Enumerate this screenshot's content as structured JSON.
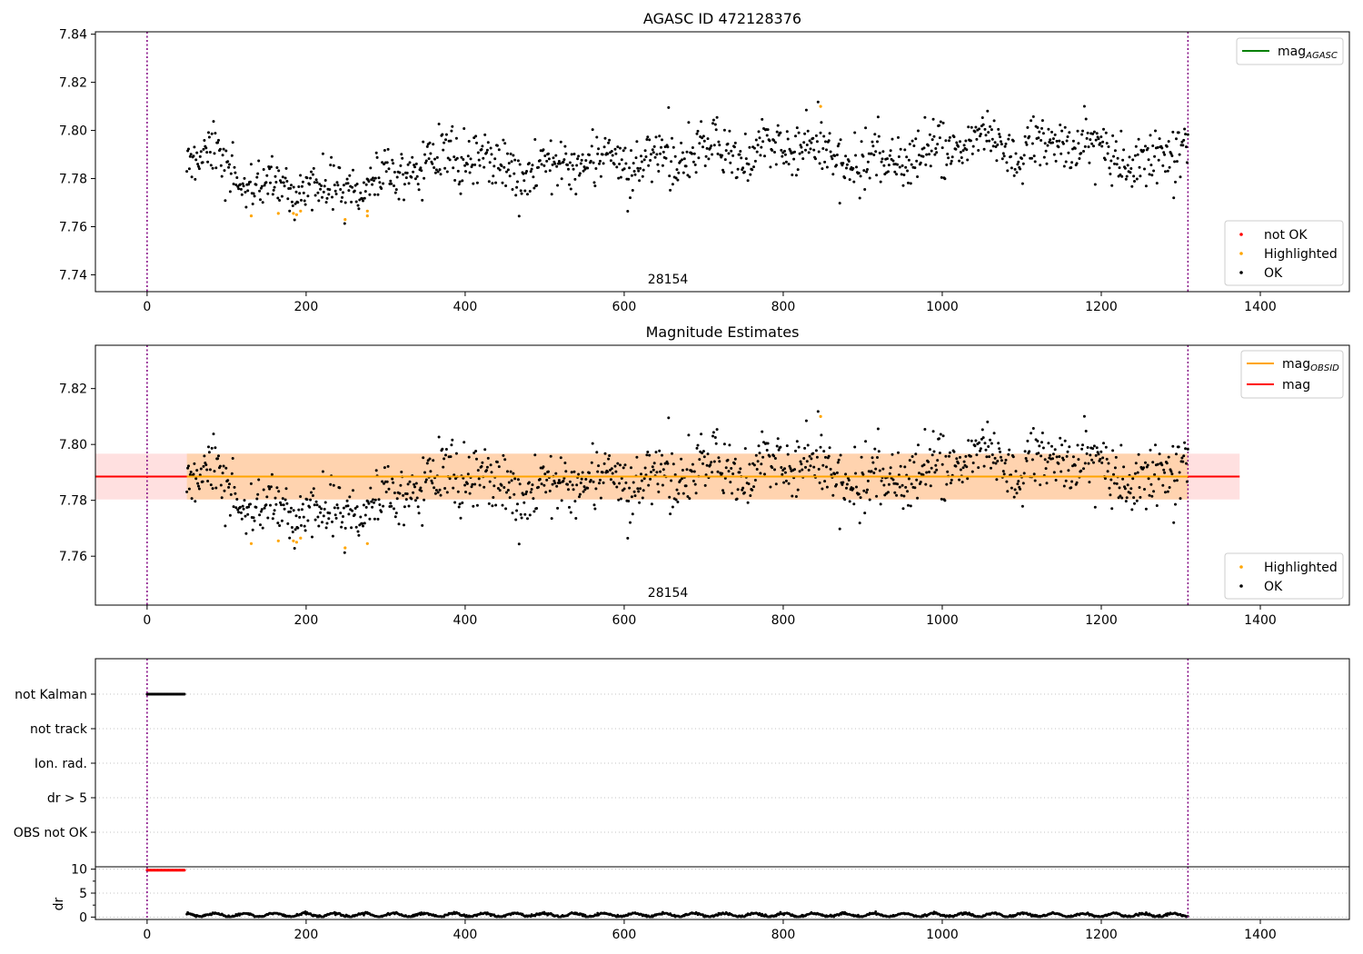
{
  "chart_data": [
    {
      "type": "scatter",
      "title": "AGASC ID 472128376",
      "xlim": [
        -65,
        1512
      ],
      "ylim": [
        7.733,
        7.841
      ],
      "xticks": [
        0,
        200,
        400,
        600,
        800,
        1000,
        1200,
        1400
      ],
      "yticks": [
        7.74,
        7.76,
        7.78,
        7.8,
        7.82,
        7.84
      ],
      "vlines": [
        0,
        1309
      ],
      "annotation": "28154",
      "annotation_x": 655,
      "line_legend": [
        {
          "name": "mag_AGASC",
          "color": "#008000"
        }
      ],
      "marker_legend": [
        {
          "name": "not OK",
          "color": "#ff0000"
        },
        {
          "name": "Highlighted",
          "color": "#ffa500"
        },
        {
          "name": "OK",
          "color": "#000000"
        }
      ],
      "highlighted_points": [
        [
          131,
          7.7645
        ],
        [
          165,
          7.7655
        ],
        [
          184,
          7.7655
        ],
        [
          188,
          7.765
        ],
        [
          193,
          7.7665
        ],
        [
          249,
          7.763
        ],
        [
          277,
          7.7645
        ],
        [
          277,
          7.7665
        ],
        [
          847,
          7.81
        ]
      ],
      "ok_trend": [
        [
          50,
          7.79
        ],
        [
          100,
          7.787
        ],
        [
          130,
          7.778
        ],
        [
          200,
          7.776
        ],
        [
          280,
          7.777
        ],
        [
          320,
          7.785
        ],
        [
          380,
          7.791
        ],
        [
          450,
          7.785
        ],
        [
          500,
          7.783
        ],
        [
          560,
          7.788
        ],
        [
          620,
          7.785
        ],
        [
          700,
          7.793
        ],
        [
          760,
          7.789
        ],
        [
          800,
          7.795
        ],
        [
          860,
          7.791
        ],
        [
          900,
          7.786
        ],
        [
          1000,
          7.792
        ],
        [
          1060,
          7.796
        ],
        [
          1100,
          7.791
        ],
        [
          1140,
          7.795
        ],
        [
          1200,
          7.793
        ],
        [
          1250,
          7.786
        ],
        [
          1280,
          7.792
        ],
        [
          1309,
          7.796
        ]
      ]
    },
    {
      "type": "scatter",
      "title": "Magnitude Estimates",
      "xlim": [
        -65,
        1512
      ],
      "ylim": [
        7.7425,
        7.8355
      ],
      "xticks": [
        0,
        200,
        400,
        600,
        800,
        1000,
        1200,
        1400
      ],
      "yticks": [
        7.76,
        7.78,
        7.8,
        7.82
      ],
      "vlines": [
        0,
        1309
      ],
      "annotation": "28154",
      "annotation_x": 655,
      "mag_obsid": 7.7885,
      "mag": 7.7885,
      "band_inner": [
        7.7803,
        7.7967
      ],
      "band_outer": [
        7.7803,
        7.7967
      ],
      "band_xrange": [
        50,
        1374
      ],
      "line_legend": [
        {
          "name": "mag_OBSID",
          "color": "#ffa500"
        },
        {
          "name": "mag",
          "color": "#ff0000"
        }
      ],
      "marker_legend": [
        {
          "name": "Highlighted",
          "color": "#ffa500"
        },
        {
          "name": "OK",
          "color": "#000000"
        }
      ],
      "highlighted_points": [
        [
          131,
          7.7645
        ],
        [
          165,
          7.7655
        ],
        [
          184,
          7.7655
        ],
        [
          188,
          7.765
        ],
        [
          193,
          7.7665
        ],
        [
          249,
          7.763
        ],
        [
          277,
          7.7645
        ],
        [
          847,
          7.81
        ]
      ]
    },
    {
      "type": "scatter",
      "title": "",
      "xlim": [
        -65,
        1512
      ],
      "ylabels": [
        "not Kalman",
        "not track",
        "Ion. rad.",
        "dr > 5",
        "OBS not OK"
      ],
      "flag_segments": [
        {
          "label": "not Kalman",
          "x": [
            0,
            47
          ]
        }
      ],
      "vlines": [
        0,
        1309
      ]
    },
    {
      "type": "scatter",
      "title": "",
      "xlim": [
        -65,
        1512
      ],
      "ylim": [
        -0.5,
        10.5
      ],
      "ylabel": "dr",
      "yticks": [
        0,
        5,
        10
      ],
      "xticks": [
        0,
        200,
        400,
        600,
        800,
        1000,
        1200,
        1400
      ],
      "vlines": [
        0,
        1309
      ],
      "red_segment": {
        "x": [
          0,
          47
        ],
        "y": 9.8
      },
      "black_range": {
        "x": [
          50,
          1309
        ],
        "y_mean": 0.45
      }
    }
  ]
}
